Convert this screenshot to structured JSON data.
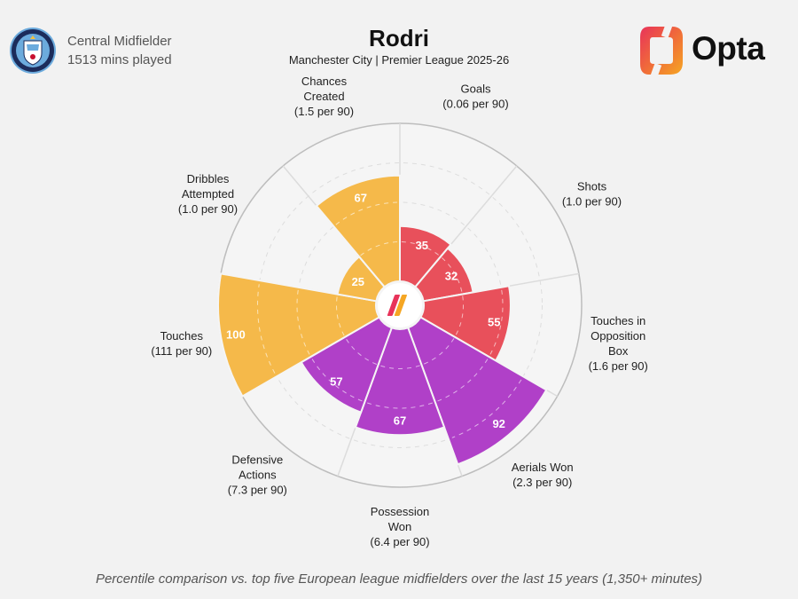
{
  "header": {
    "position": "Central Midfielder",
    "minutes": "1513 mins played",
    "player_name": "Rodri",
    "subtitle": "Manchester City | Premier League 2025-26",
    "brand": "Opta",
    "crest_text": "MANCHESTER CITY"
  },
  "footnote": "Percentile comparison vs. top five European league midfielders over the last 15 years (1,350+ minutes)",
  "colors": {
    "attacking": "#e8505b",
    "possession": "#b040c8",
    "creation": "#f5b94a",
    "background": "#f2f2f2",
    "ring": "#d0d0d0"
  },
  "chart_data": {
    "type": "polar-bar",
    "scale": [
      0,
      100
    ],
    "categories": [
      {
        "name": "Goals",
        "rate": "(0.06 per 90)",
        "value": 35,
        "group": "attacking"
      },
      {
        "name": "Shots",
        "rate": "(1.0 per 90)",
        "value": 32,
        "group": "attacking"
      },
      {
        "name": "Touches in Opposition Box",
        "rate": "(1.6 per 90)",
        "value": 55,
        "group": "attacking"
      },
      {
        "name": "Aerials Won",
        "rate": "(2.3 per 90)",
        "value": 92,
        "group": "possession"
      },
      {
        "name": "Possession Won",
        "rate": "(6.4 per 90)",
        "value": 67,
        "group": "possession"
      },
      {
        "name": "Defensive Actions",
        "rate": "(7.3 per 90)",
        "value": 57,
        "group": "possession"
      },
      {
        "name": "Touches",
        "rate": "(111 per 90)",
        "value": 100,
        "group": "creation"
      },
      {
        "name": "Dribbles Attempted",
        "rate": "(1.0 per 90)",
        "value": 25,
        "group": "creation"
      },
      {
        "name": "Chances Created",
        "rate": "(1.5 per 90)",
        "value": 67,
        "group": "creation"
      }
    ]
  }
}
